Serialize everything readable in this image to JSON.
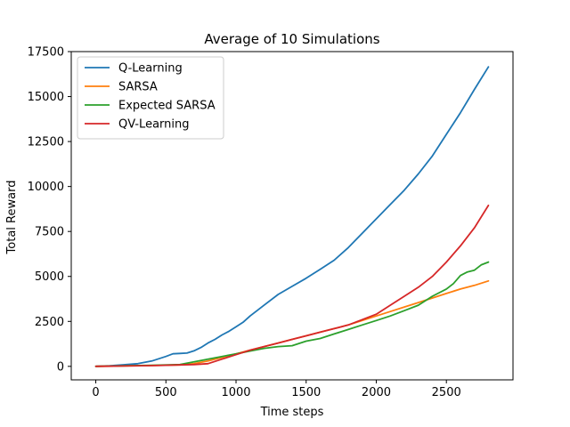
{
  "chart_data": {
    "type": "line",
    "title": "Average of 10 Simulations",
    "xlabel": "Time steps",
    "ylabel": "Total Reward",
    "xlim": [
      -175,
      2975
    ],
    "ylim": [
      -750,
      17500
    ],
    "xticks": [
      0,
      500,
      1000,
      1500,
      2000,
      2500
    ],
    "yticks": [
      0,
      2500,
      5000,
      7500,
      10000,
      12500,
      15000,
      17500
    ],
    "grid": false,
    "legend_position": "top-left",
    "series": [
      {
        "name": "Q-Learning",
        "color": "#1f77b4",
        "x": [
          0,
          100,
          200,
          300,
          400,
          500,
          550,
          600,
          650,
          700,
          750,
          800,
          850,
          900,
          950,
          1000,
          1050,
          1100,
          1150,
          1200,
          1300,
          1400,
          1500,
          1600,
          1700,
          1800,
          1900,
          2000,
          2100,
          2200,
          2300,
          2400,
          2500,
          2600,
          2700,
          2800
        ],
        "values": [
          0,
          30,
          90,
          150,
          300,
          550,
          700,
          720,
          740,
          860,
          1050,
          1300,
          1500,
          1750,
          1950,
          2200,
          2450,
          2800,
          3100,
          3400,
          4000,
          4450,
          4900,
          5400,
          5900,
          6600,
          7400,
          8200,
          9000,
          9800,
          10700,
          11700,
          12900,
          14100,
          15400,
          16650
        ]
      },
      {
        "name": "SARSA",
        "color": "#ff7f0e",
        "x": [
          0,
          200,
          400,
          600,
          700,
          800,
          900,
          1000,
          1100,
          1200,
          1300,
          1400,
          1500,
          1600,
          1700,
          1800,
          1900,
          2000,
          2100,
          2200,
          2300,
          2400,
          2500,
          2600,
          2700,
          2800
        ],
        "values": [
          0,
          20,
          50,
          80,
          150,
          300,
          500,
          700,
          900,
          1100,
          1300,
          1500,
          1700,
          1900,
          2100,
          2300,
          2550,
          2800,
          3050,
          3300,
          3550,
          3800,
          4050,
          4300,
          4500,
          4750
        ]
      },
      {
        "name": "Expected SARSA",
        "color": "#2ca02c",
        "x": [
          0,
          200,
          400,
          600,
          700,
          800,
          900,
          1000,
          1100,
          1200,
          1300,
          1400,
          1500,
          1600,
          1700,
          1800,
          1900,
          2000,
          2100,
          2200,
          2300,
          2400,
          2500,
          2550,
          2600,
          2650,
          2700,
          2750,
          2800
        ],
        "values": [
          0,
          30,
          60,
          100,
          250,
          400,
          550,
          700,
          850,
          1000,
          1100,
          1150,
          1400,
          1550,
          1800,
          2050,
          2300,
          2550,
          2800,
          3100,
          3400,
          3900,
          4300,
          4600,
          5050,
          5250,
          5350,
          5650,
          5800
        ]
      },
      {
        "name": "QV-Learning",
        "color": "#d62728",
        "x": [
          0,
          200,
          400,
          600,
          700,
          800,
          900,
          1000,
          1100,
          1200,
          1300,
          1400,
          1500,
          1600,
          1700,
          1800,
          1900,
          2000,
          2100,
          2200,
          2300,
          2400,
          2500,
          2600,
          2700,
          2800
        ],
        "values": [
          0,
          20,
          40,
          80,
          100,
          150,
          400,
          650,
          900,
          1100,
          1300,
          1500,
          1700,
          1900,
          2100,
          2300,
          2600,
          2900,
          3400,
          3900,
          4400,
          5000,
          5800,
          6700,
          7700,
          8950
        ]
      }
    ]
  }
}
